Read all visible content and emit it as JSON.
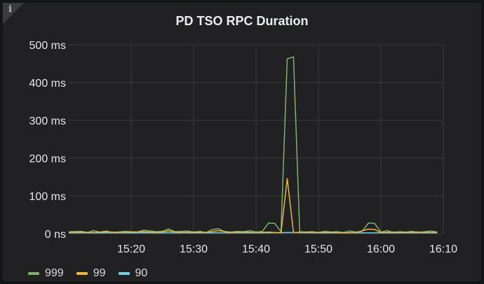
{
  "panel": {
    "title": "PD TSO RPC Duration",
    "info_icon": "info-icon"
  },
  "chart_data": {
    "type": "line",
    "title": "PD TSO RPC Duration",
    "xlabel": "",
    "ylabel": "",
    "grid": true,
    "legend_position": "bottom-left",
    "xlim": [
      "15:10",
      "16:10"
    ],
    "ylim": [
      0,
      500
    ],
    "x_ticks": [
      "15:20",
      "15:30",
      "15:40",
      "15:50",
      "16:00",
      "16:10"
    ],
    "y_ticks": [
      {
        "value": 0,
        "label": "0 ns"
      },
      {
        "value": 100,
        "label": "100 ms"
      },
      {
        "value": 200,
        "label": "200 ms"
      },
      {
        "value": 300,
        "label": "300 ms"
      },
      {
        "value": 400,
        "label": "400 ms"
      },
      {
        "value": 500,
        "label": "500 ms"
      }
    ],
    "series": [
      {
        "name": "999",
        "color": "#7eb26d",
        "points": [
          [
            "15:10",
            5
          ],
          [
            "15:12",
            6
          ],
          [
            "15:13",
            3
          ],
          [
            "15:14",
            8
          ],
          [
            "15:15",
            4
          ],
          [
            "15:16",
            7
          ],
          [
            "15:17",
            3
          ],
          [
            "15:19",
            6
          ],
          [
            "15:21",
            4
          ],
          [
            "15:22",
            9
          ],
          [
            "15:24",
            5
          ],
          [
            "15:25",
            6
          ],
          [
            "15:26",
            12
          ],
          [
            "15:27",
            5
          ],
          [
            "15:29",
            7
          ],
          [
            "15:30",
            4
          ],
          [
            "15:31",
            6
          ],
          [
            "15:32",
            3
          ],
          [
            "15:33",
            11
          ],
          [
            "15:34",
            13
          ],
          [
            "15:35",
            5
          ],
          [
            "15:36",
            4
          ],
          [
            "15:37",
            6
          ],
          [
            "15:38",
            5
          ],
          [
            "15:39",
            8
          ],
          [
            "15:40",
            4
          ],
          [
            "15:41",
            6
          ],
          [
            "15:42",
            28
          ],
          [
            "15:43",
            27
          ],
          [
            "15:44",
            5
          ],
          [
            "15:45",
            463
          ],
          [
            "15:46",
            468
          ],
          [
            "15:47",
            5
          ],
          [
            "15:48",
            4
          ],
          [
            "15:49",
            5
          ],
          [
            "15:50",
            3
          ],
          [
            "15:51",
            6
          ],
          [
            "15:52",
            4
          ],
          [
            "15:53",
            5
          ],
          [
            "15:54",
            3
          ],
          [
            "15:55",
            7
          ],
          [
            "15:56",
            4
          ],
          [
            "15:57",
            6
          ],
          [
            "15:58",
            28
          ],
          [
            "15:59",
            27
          ],
          [
            "16:00",
            4
          ],
          [
            "16:01",
            8
          ],
          [
            "16:02",
            3
          ],
          [
            "16:03",
            5
          ],
          [
            "16:04",
            4
          ],
          [
            "16:05",
            6
          ],
          [
            "16:06",
            3
          ],
          [
            "16:07",
            5
          ],
          [
            "16:08",
            7
          ],
          [
            "16:09",
            4
          ]
        ]
      },
      {
        "name": "99",
        "color": "#eab839",
        "points": [
          [
            "15:10",
            3
          ],
          [
            "15:12",
            4
          ],
          [
            "15:14",
            3
          ],
          [
            "15:16",
            5
          ],
          [
            "15:18",
            3
          ],
          [
            "15:20",
            4
          ],
          [
            "15:22",
            5
          ],
          [
            "15:24",
            3
          ],
          [
            "15:26",
            7
          ],
          [
            "15:28",
            3
          ],
          [
            "15:30",
            4
          ],
          [
            "15:32",
            3
          ],
          [
            "15:34",
            8
          ],
          [
            "15:36",
            3
          ],
          [
            "15:38",
            4
          ],
          [
            "15:40",
            3
          ],
          [
            "15:42",
            4
          ],
          [
            "15:44",
            2
          ],
          [
            "15:45",
            146
          ],
          [
            "15:46",
            3
          ],
          [
            "15:48",
            4
          ],
          [
            "15:50",
            3
          ],
          [
            "15:52",
            4
          ],
          [
            "15:54",
            2
          ],
          [
            "15:56",
            3
          ],
          [
            "15:58",
            12
          ],
          [
            "15:59",
            11
          ],
          [
            "16:00",
            3
          ],
          [
            "16:02",
            4
          ],
          [
            "16:04",
            3
          ],
          [
            "16:06",
            4
          ],
          [
            "16:08",
            3
          ],
          [
            "16:09",
            4
          ]
        ]
      },
      {
        "name": "90",
        "color": "#6ed0e0",
        "points": [
          [
            "15:10",
            2
          ],
          [
            "15:20",
            2
          ],
          [
            "15:30",
            2
          ],
          [
            "15:40",
            2
          ],
          [
            "15:45",
            3
          ],
          [
            "15:50",
            2
          ],
          [
            "16:00",
            2
          ],
          [
            "16:09",
            2
          ]
        ]
      }
    ]
  }
}
